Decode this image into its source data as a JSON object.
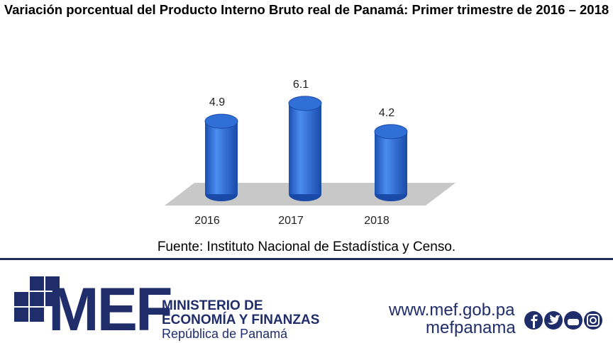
{
  "chart_data": {
    "type": "bar",
    "title": "Variación porcentual del Producto Interno Bruto real de Panamá: Primer trimestre de 2016 – 2018",
    "categories": [
      "2016",
      "2017",
      "2018"
    ],
    "values": [
      4.9,
      6.1,
      4.2
    ],
    "color": "#2f6fd6",
    "source": "Fuente: Instituto Nacional de Estadística y Censo."
  },
  "footer": {
    "logo": "MEF",
    "ministry": [
      "MINISTERIO DE",
      "ECONOMÍA Y FINANZAS"
    ],
    "country": "República de Panamá",
    "website": "www.mef.gob.pa",
    "handle": "mefpanama"
  }
}
